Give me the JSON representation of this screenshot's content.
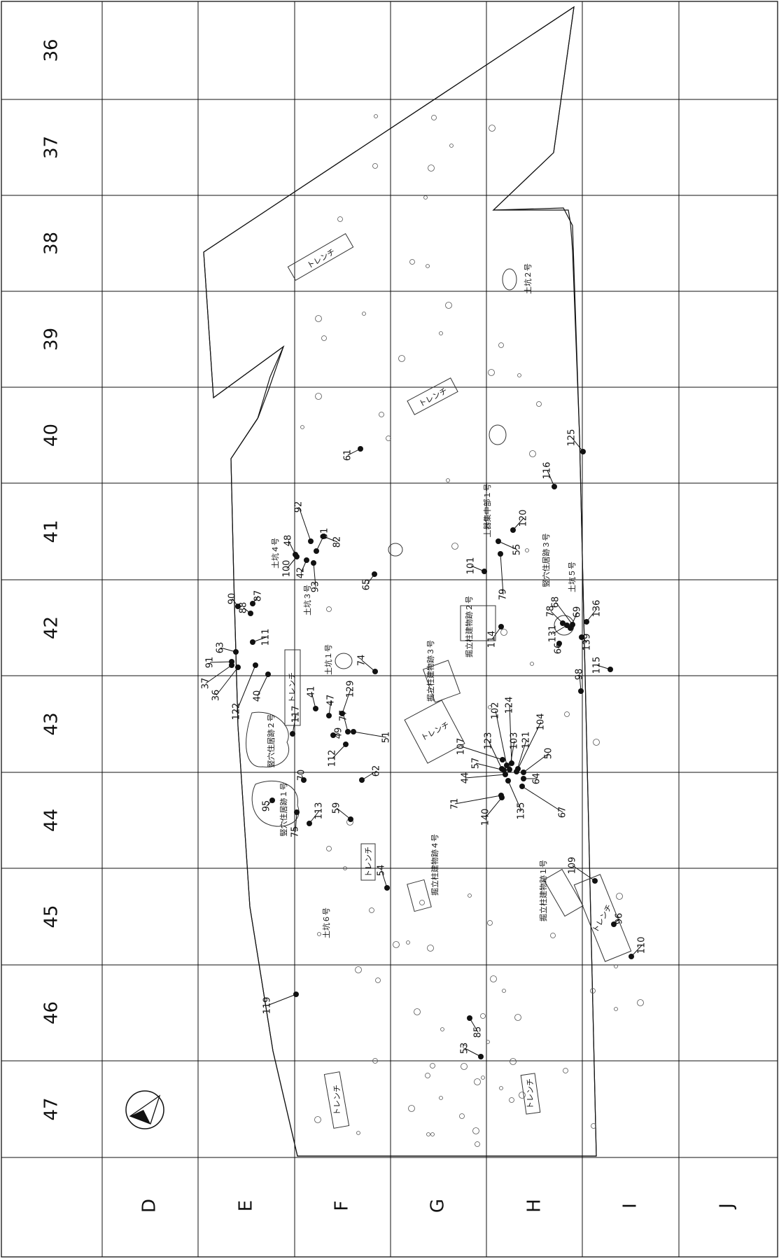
{
  "map": {
    "row_labels": [
      "36",
      "37",
      "38",
      "39",
      "40",
      "41",
      "42",
      "43",
      "44",
      "45",
      "46",
      "47"
    ],
    "column_labels": [
      "D",
      "E",
      "F",
      "G",
      "H",
      "I",
      "J"
    ],
    "north_arrow_icon": "north-arrow-icon",
    "features": [
      {
        "id": "trench-1",
        "label": "トレンチ"
      },
      {
        "id": "trench-2",
        "label": "トレンチ"
      },
      {
        "id": "trench-3",
        "label": "トレンチ"
      },
      {
        "id": "trench-4",
        "label": "トレンチ"
      },
      {
        "id": "trench-5",
        "label": "トレンチ"
      },
      {
        "id": "trench-6",
        "label": "トレンチ"
      },
      {
        "id": "trench-7",
        "label": "トレンチ"
      },
      {
        "id": "trench-8",
        "label": "トレンチ"
      },
      {
        "id": "pit-2",
        "label": "土坑２号"
      },
      {
        "id": "pit-4",
        "label": "土坑４号"
      },
      {
        "id": "pit-3",
        "label": "土坑３号"
      },
      {
        "id": "pit-1",
        "label": "土坑１号"
      },
      {
        "id": "pit-5",
        "label": "土坑５号"
      },
      {
        "id": "pit-6",
        "label": "土坑６号"
      },
      {
        "id": "pottery-cluster",
        "label": "土器集中部１号"
      },
      {
        "id": "dwelling-3",
        "label": "竪穴住居跡３号"
      },
      {
        "id": "dwelling-2",
        "label": "竪穴住居跡２号"
      },
      {
        "id": "dwelling-1",
        "label": "竪穴住居跡１号"
      },
      {
        "id": "pillar-2",
        "label": "掘立柱建物跡２号"
      },
      {
        "id": "pillar-3",
        "label": "掘立柱建物跡３号"
      },
      {
        "id": "pillar-4",
        "label": "掘立柱建物跡４号"
      },
      {
        "id": "pillar-1",
        "label": "掘立柱建物跡１号"
      }
    ],
    "find_labels": [
      "125",
      "116",
      "120",
      "55",
      "101",
      "79",
      "61",
      "92",
      "48",
      "81",
      "82",
      "100",
      "42",
      "93",
      "65",
      "87",
      "90",
      "88",
      "111",
      "63",
      "91",
      "37",
      "36",
      "122",
      "40",
      "41",
      "47",
      "129",
      "74",
      "117",
      "77",
      "49",
      "51",
      "112",
      "62",
      "114",
      "78",
      "68",
      "69",
      "136",
      "131",
      "139",
      "66",
      "115",
      "98",
      "107",
      "102",
      "124",
      "123",
      "103",
      "104",
      "57",
      "121",
      "50",
      "44",
      "64",
      "71",
      "140",
      "135",
      "67",
      "70",
      "95",
      "75",
      "113",
      "59",
      "54",
      "109",
      "96",
      "110",
      "119",
      "85",
      "53"
    ]
  }
}
